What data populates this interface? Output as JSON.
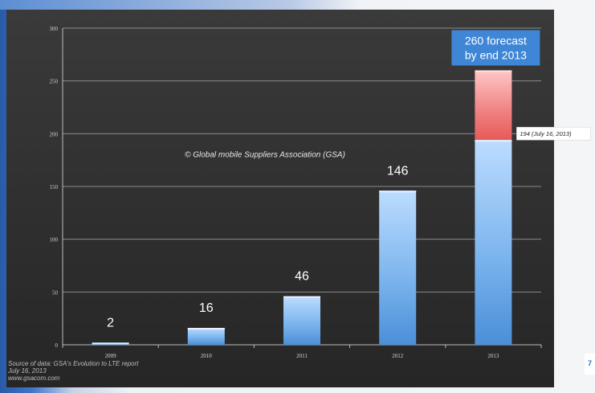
{
  "chart_data": {
    "type": "bar",
    "categories": [
      "2009",
      "2010",
      "2011",
      "2012",
      "2013"
    ],
    "values": [
      2,
      16,
      46,
      146,
      194
    ],
    "forecast": {
      "category": "2013",
      "value": 260
    },
    "data_labels": [
      "2",
      "16",
      "46",
      "146",
      ""
    ],
    "y_ticks": [
      "0",
      "50",
      "100",
      "150",
      "200",
      "250",
      "300"
    ],
    "ylim": [
      0,
      300
    ],
    "grid": true,
    "watermark": "© Global mobile Suppliers Association (GSA)",
    "forecast_label_line1": "260 forecast",
    "forecast_label_line2": "by end 2013",
    "callout": "194 (July 16, 2013)",
    "colors": {
      "bar": "#5a9ee0",
      "bar_light": "#bcdcff",
      "forecast": "#e65a5a",
      "forecast_light": "#ffc6c6",
      "forecast_box": "#3f86d6",
      "plot_bg": "#3a3a3a",
      "gridline": "#8a8a8a"
    }
  },
  "source": {
    "line1": "Source of data: GSA's Evolution to LTE report",
    "line2": "July 16, 2013",
    "line3": "www.gsacom.com"
  },
  "edge_mark": "7"
}
